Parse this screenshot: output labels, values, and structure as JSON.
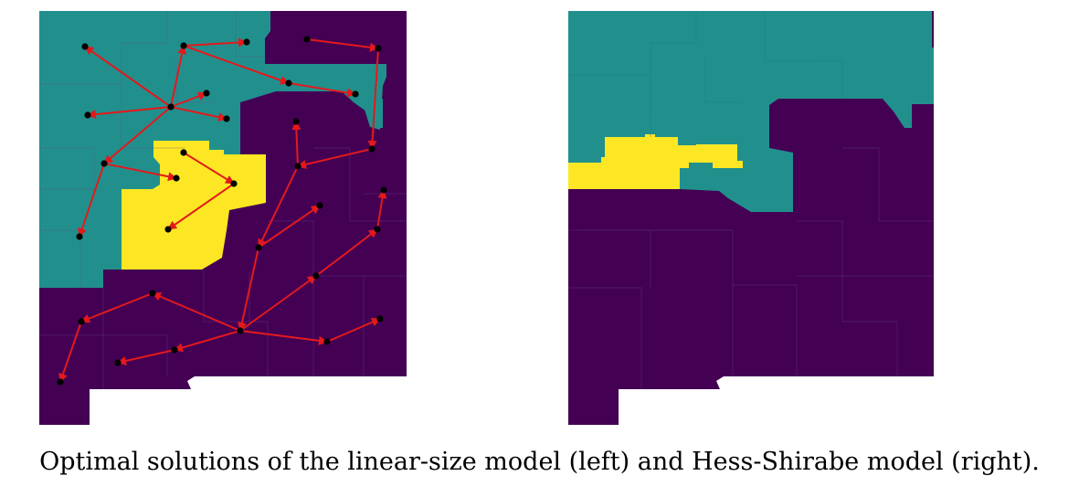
{
  "caption": "Optimal solutions of the linear-size model (left) and Hess-Shirabe model (right).",
  "colors": {
    "teal": "#21908d",
    "yellow": "#fde725",
    "purple": "#440154",
    "edge": "#e3191c",
    "node": "#000000",
    "boundary": "#5b3f7a"
  },
  "maps": [
    {
      "id": "left",
      "model": "linear-size",
      "position_word": "left",
      "has_edges": true
    },
    {
      "id": "right",
      "model": "Hess-Shirabe",
      "position_word": "right",
      "has_edges": false
    }
  ]
}
